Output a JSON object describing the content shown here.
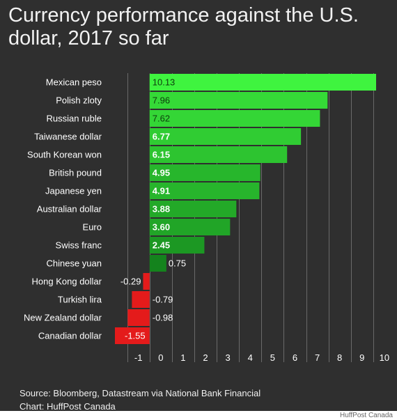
{
  "chart_data": {
    "type": "bar",
    "orientation": "horizontal",
    "title": "Currency performance against the U.S. dollar, 2017 so far",
    "xlabel": "",
    "ylabel": "",
    "xlim": [
      -1.55,
      10.13
    ],
    "xticks": [
      "-1",
      "0",
      "1",
      "2",
      "3",
      "4",
      "5",
      "6",
      "7",
      "8",
      "9",
      "10"
    ],
    "grid": true,
    "legend": "none",
    "categories": [
      "Mexican peso",
      "Polish zloty",
      "Russian ruble",
      "Taiwanese dollar",
      "South Korean won",
      "British pound",
      "Japanese yen",
      "Australian dollar",
      "Euro",
      "Swiss franc",
      "Chinese yuan",
      "Hong Kong dollar",
      "Turkish lira",
      "New Zealand dollar",
      "Canadian dollar"
    ],
    "values": [
      10.13,
      7.96,
      7.62,
      6.77,
      6.15,
      4.95,
      4.91,
      3.88,
      3.6,
      2.45,
      0.75,
      -0.29,
      -0.79,
      -0.98,
      -1.55
    ],
    "value_labels": [
      "10.13",
      "7.96",
      "7.62",
      "6.77",
      "6.15",
      "4.95",
      "4.91",
      "3.88",
      "3.60",
      "2.45",
      "0.75",
      "-0.29",
      "-0.79",
      "-0.98",
      "-1.55"
    ],
    "colors": {
      "positive_high": "#3ff43f",
      "positive_low": "#117a1a",
      "negative": "#e41b1b",
      "background": "#2f2f2f",
      "grid": "#6a6a6a",
      "text": "#ffffff"
    }
  },
  "source": {
    "line1": "Source: Bloomberg, Datastream via National Bank Financial",
    "line2": "Chart: HuffPost Canada"
  },
  "watermark": "HuffPost Canada"
}
